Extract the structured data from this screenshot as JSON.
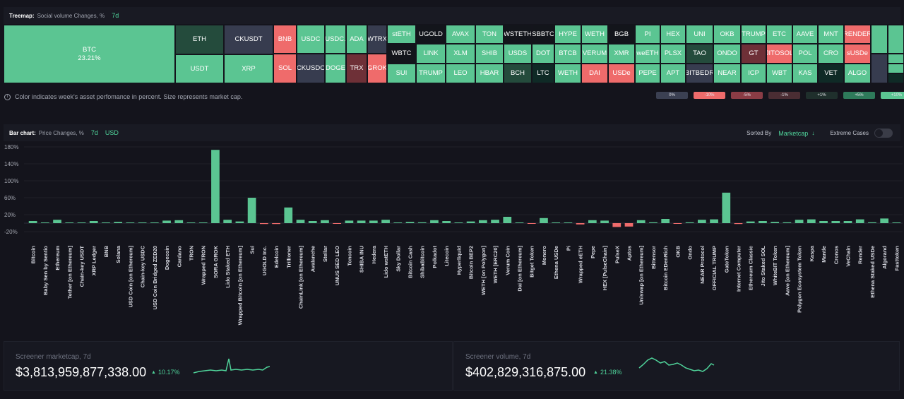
{
  "treemap": {
    "title": "Treemap:",
    "subtitle": "Social volume Changes, %",
    "period": "7d",
    "colors": {
      "up_strong": "#5bc592",
      "up_mid": "#39a577",
      "dark_green": "#244b3c",
      "flat": "#373c4f",
      "down": "#ef6b6b",
      "dark_red": "#6e3037",
      "dark": "#0f2a26",
      "black": "#13151b"
    },
    "tiles": [
      {
        "label": "BTC",
        "sub": "23.21%",
        "c": "up_strong"
      },
      {
        "label": "ETH",
        "c": "dark_green"
      },
      {
        "label": "USDT",
        "c": "up_strong"
      },
      {
        "label": "CKUSDT",
        "c": "flat"
      },
      {
        "label": "XRP",
        "c": "up_strong"
      },
      {
        "label": "BNB",
        "c": "down"
      },
      {
        "label": "SOL",
        "c": "down"
      },
      {
        "label": "USDC",
        "c": "up_strong"
      },
      {
        "label": "CKUSDC",
        "c": "flat"
      },
      {
        "label": "USDC.",
        "c": "up_strong"
      },
      {
        "label": "DOGE",
        "c": "up_strong"
      },
      {
        "label": "ADA",
        "c": "up_strong"
      },
      {
        "label": "TRX",
        "c": "dark_red"
      },
      {
        "label": "WTRX",
        "c": "flat"
      },
      {
        "label": "GROK",
        "c": "down"
      },
      {
        "label": "stETH",
        "c": "up_strong"
      },
      {
        "label": "WBTC",
        "c": "black"
      },
      {
        "label": "SUI",
        "c": "up_strong"
      },
      {
        "label": "UGOLD",
        "c": "black"
      },
      {
        "label": "LINK",
        "c": "up_strong"
      },
      {
        "label": "TRUMP",
        "c": "up_strong"
      },
      {
        "label": "AVAX",
        "c": "up_strong"
      },
      {
        "label": "XLM",
        "c": "up_strong"
      },
      {
        "label": "LEO",
        "c": "up_strong"
      },
      {
        "label": "TON",
        "c": "up_strong"
      },
      {
        "label": "SHIB",
        "c": "up_strong"
      },
      {
        "label": "HBAR",
        "c": "up_strong"
      },
      {
        "label": "WSTETH",
        "c": "black"
      },
      {
        "label": "USDS",
        "c": "up_strong"
      },
      {
        "label": "BCH",
        "c": "dark_green"
      },
      {
        "label": "SBBTC",
        "c": "black"
      },
      {
        "label": "DOT",
        "c": "up_strong"
      },
      {
        "label": "LTC",
        "c": "dark"
      },
      {
        "label": "HYPE",
        "c": "up_strong"
      },
      {
        "label": "BTCB",
        "c": "up_strong"
      },
      {
        "label": "WETH",
        "c": "up_strong"
      },
      {
        "label": "WETH",
        "c": "up_strong"
      },
      {
        "label": "VERUM",
        "c": "up_strong"
      },
      {
        "label": "DAI",
        "c": "down"
      },
      {
        "label": "BGB",
        "c": "black"
      },
      {
        "label": "XMR",
        "c": "up_strong"
      },
      {
        "label": "USDe",
        "c": "down"
      },
      {
        "label": "PI",
        "c": "up_strong"
      },
      {
        "label": "weETH",
        "c": "up_strong"
      },
      {
        "label": "PEPE",
        "c": "up_strong"
      },
      {
        "label": "HEX",
        "c": "up_strong"
      },
      {
        "label": "PLSX",
        "c": "up_strong"
      },
      {
        "label": "APT",
        "c": "up_strong"
      },
      {
        "label": "UNI",
        "c": "up_strong"
      },
      {
        "label": "TAO",
        "c": "dark_green"
      },
      {
        "label": "BITBEDR",
        "c": "flat"
      },
      {
        "label": "OKB",
        "c": "up_strong"
      },
      {
        "label": "ONDO",
        "c": "up_strong"
      },
      {
        "label": "NEAR",
        "c": "up_strong"
      },
      {
        "label": "TRUMP",
        "c": "up_strong"
      },
      {
        "label": "GT",
        "c": "dark_red"
      },
      {
        "label": "ICP",
        "c": "up_strong"
      },
      {
        "label": "ETC",
        "c": "up_strong"
      },
      {
        "label": "JITOSOL",
        "c": "down"
      },
      {
        "label": "WBT",
        "c": "up_strong"
      },
      {
        "label": "AAVE",
        "c": "up_strong"
      },
      {
        "label": "POL",
        "c": "up_strong"
      },
      {
        "label": "KAS",
        "c": "up_strong"
      },
      {
        "label": "MNT",
        "c": "up_strong"
      },
      {
        "label": "CRO",
        "c": "up_strong"
      },
      {
        "label": "VET",
        "c": "dark"
      },
      {
        "label": "RENDER",
        "c": "down"
      },
      {
        "label": "sUSDe",
        "c": "down"
      },
      {
        "label": "ALGO",
        "c": "up_strong"
      },
      {
        "label": "",
        "c": "up_strong"
      },
      {
        "label": "",
        "c": "flat"
      },
      {
        "label": "",
        "c": "up_strong"
      },
      {
        "label": "",
        "c": "up_strong"
      },
      {
        "label": "",
        "c": "up_strong"
      },
      {
        "label": "",
        "c": "dark"
      }
    ],
    "note": "Color indicates week's asset perfomance in percent. Size represents market cap.",
    "legend": [
      {
        "label": "0%",
        "color": "#3b4052"
      },
      {
        "label": "-10%",
        "color": "#ef6b6b"
      },
      {
        "label": "-5%",
        "color": "#8a3c45"
      },
      {
        "label": "-1%",
        "color": "#4a2d33"
      },
      {
        "label": "+1%",
        "color": "#1f2f2c"
      },
      {
        "label": "+5%",
        "color": "#2e7a5a"
      },
      {
        "label": "+10%",
        "color": "#5bc592"
      }
    ]
  },
  "bar_section": {
    "title": "Bar chart:",
    "subtitle": "Price Changes, %",
    "period": "7d",
    "currency": "USD",
    "sorted_by_label": "Sorted By",
    "sorted_by_value": "Marketcap",
    "extreme_label": "Extreme Cases"
  },
  "chart_data": {
    "type": "bar",
    "ylim": [
      -30,
      180
    ],
    "yticks": [
      "180%",
      "140%",
      "100%",
      "60%",
      "20%",
      "-20%"
    ],
    "ytick_values": [
      180,
      140,
      100,
      60,
      20,
      -20
    ],
    "colors": {
      "pos": "#5bc592",
      "neg": "#ef6b6b"
    },
    "categories": [
      "Bitcoin",
      "Baby Sen by Sentio",
      "Ethereum",
      "Tether [on Ethereum]",
      "Chain-key USDT",
      "XRP Ledger",
      "BNB",
      "Solana",
      "USD Coin [on Ethereum]",
      "Chain-key USDC",
      "USD Coin Bridged ZED20",
      "Dogecoin",
      "Cardano",
      "TRON",
      "Wrapped TRON",
      "SORA GROK",
      "Lido Staked ETH",
      "Wrapped Bitcoin [on Ethereum]",
      "Sui",
      "UGOLD Inc.",
      "Edelcoin",
      "Trillioner",
      "ChainLink [on Ethereum]",
      "Avalanche",
      "Stellar",
      "UNUS SED LEO",
      "Toncoin",
      "SHIBA INU",
      "Hedera",
      "Lido wstETH",
      "Sky Dollar",
      "Bitcoin Cash",
      "ShibaBitcoin",
      "Polkadot",
      "Litecoin",
      "Hyperliquid",
      "Bitcoin BEP2",
      "WETH [on Polygon]",
      "WETH [ERC20]",
      "Verum Coin",
      "Dai [on Ethereum]",
      "Bitget Token",
      "Monero",
      "Ethena USDe",
      "Pi",
      "Wrapped eETH",
      "Pepe",
      "HEX [PulseChain]",
      "PulseX",
      "Aptos",
      "Uniswap [on Ethereum]",
      "Bittensor",
      "Bitcoin EDenRich",
      "OKB",
      "Ondo",
      "NEAR Protocol",
      "OFFICIAL TRUMP",
      "GateToken",
      "Internet Computer",
      "Ethereum Classic",
      "Jito Staked SOL",
      "WhiteBIT Token",
      "Aave [on Ethereum]",
      "Polygon Ecosystem Token",
      "Kaspa",
      "Mantle",
      "Cronos",
      "VeChain",
      "Render",
      "Ethena Staked USDe",
      "Algorand",
      "Fasttoken"
    ],
    "values": [
      5,
      0.5,
      8,
      0.3,
      0.2,
      5,
      1,
      3,
      0.2,
      0.2,
      0.2,
      6,
      7,
      1,
      1.5,
      173,
      8,
      4,
      60,
      -2,
      -2,
      37,
      8,
      5,
      7,
      -1,
      6,
      6,
      6,
      8,
      0.3,
      3,
      2,
      7,
      5,
      0.5,
      4,
      7,
      8,
      15,
      0.5,
      -1,
      12,
      0.5,
      1,
      -3,
      7,
      6,
      -9,
      -8,
      7,
      2,
      10,
      -1,
      2,
      8,
      9,
      72,
      -2,
      4,
      5,
      3,
      2,
      8,
      9,
      5,
      5,
      5,
      9,
      2,
      11,
      1
    ]
  },
  "summary": {
    "marketcap": {
      "label": "Screener marketcap, 7d",
      "value": "$3,813,959,877,338.00",
      "change": "10.17%"
    },
    "volume": {
      "label": "Screener volume, 7d",
      "value": "$402,829,316,875.00",
      "change": "21.38%"
    }
  }
}
